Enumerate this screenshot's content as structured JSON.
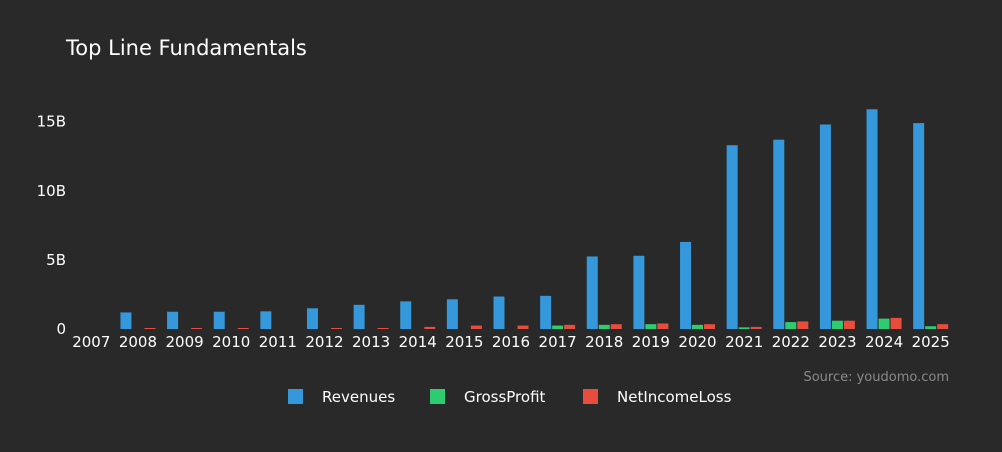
{
  "chart_data": {
    "type": "bar",
    "title": "Top Line Fundamentals",
    "xlabel": "",
    "ylabel": "",
    "ylim": [
      0,
      16.5
    ],
    "y_unit": "B",
    "y_ticks": [
      0,
      5,
      10,
      15
    ],
    "y_tick_labels": [
      "0",
      "5B",
      "10B",
      "15B"
    ],
    "grid": false,
    "legend_position": "bottom-center",
    "categories": [
      "2007",
      "2008",
      "2009",
      "2010",
      "2011",
      "2012",
      "2013",
      "2014",
      "2015",
      "2016",
      "2017",
      "2018",
      "2019",
      "2020",
      "2021",
      "2022",
      "2023",
      "2024",
      "2025"
    ],
    "series": [
      {
        "name": "Revenues",
        "color": "#3498db",
        "values": [
          0,
          1.2,
          1.25,
          1.25,
          1.28,
          1.5,
          1.75,
          2.0,
          2.15,
          2.35,
          2.4,
          5.25,
          5.3,
          6.3,
          13.3,
          13.7,
          14.8,
          15.9,
          14.9
        ]
      },
      {
        "name": "GrossProfit",
        "color": "#2ecc71",
        "values": [
          0,
          0,
          0,
          0,
          0,
          0,
          0,
          0,
          0,
          0,
          0.25,
          0.3,
          0.35,
          0.3,
          0.12,
          0.5,
          0.6,
          0.75,
          0.2
        ]
      },
      {
        "name": "NetIncomeLoss",
        "color": "#e74c3c",
        "values": [
          0,
          0.05,
          0.05,
          0.05,
          0,
          0.04,
          0.06,
          0.15,
          0.25,
          0.25,
          0.3,
          0.35,
          0.4,
          0.35,
          0.15,
          0.55,
          0.6,
          0.8,
          0.35
        ]
      }
    ],
    "source": "Source: youdomo.com"
  }
}
